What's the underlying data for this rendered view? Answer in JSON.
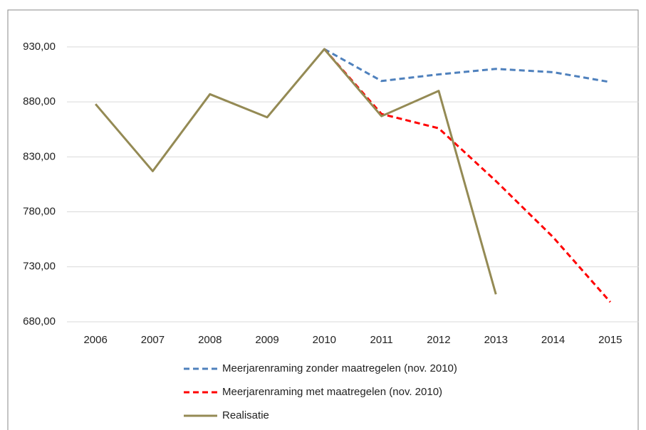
{
  "chart_data": {
    "type": "line",
    "categories": [
      "2006",
      "2007",
      "2008",
      "2009",
      "2010",
      "2011",
      "2012",
      "2013",
      "2014",
      "2015"
    ],
    "series": [
      {
        "name": "Meerjarenraming zonder maatregelen (nov. 2010)",
        "color": "#4f81bd",
        "dashed": true,
        "values": [
          null,
          null,
          null,
          null,
          928,
          899,
          905,
          910,
          907,
          898
        ]
      },
      {
        "name": "Meerjarenraming met maatregelen (nov. 2010)",
        "color": "#ff0000",
        "dashed": true,
        "values": [
          null,
          null,
          null,
          null,
          928,
          869,
          856,
          808,
          757,
          698
        ]
      },
      {
        "name": "Realisatie",
        "color": "#948a54",
        "dashed": false,
        "values": [
          878,
          817,
          887,
          866,
          928,
          867,
          890,
          705,
          null,
          null
        ]
      }
    ],
    "ylim": [
      680,
      950
    ],
    "yticks": [
      {
        "value": 680,
        "label": "680,00"
      },
      {
        "value": 730,
        "label": "730,00"
      },
      {
        "value": 780,
        "label": "780,00"
      },
      {
        "value": 830,
        "label": "830,00"
      },
      {
        "value": 880,
        "label": "880,00"
      },
      {
        "value": 930,
        "label": "930,00"
      }
    ],
    "grid": true,
    "legend": "bottom"
  }
}
